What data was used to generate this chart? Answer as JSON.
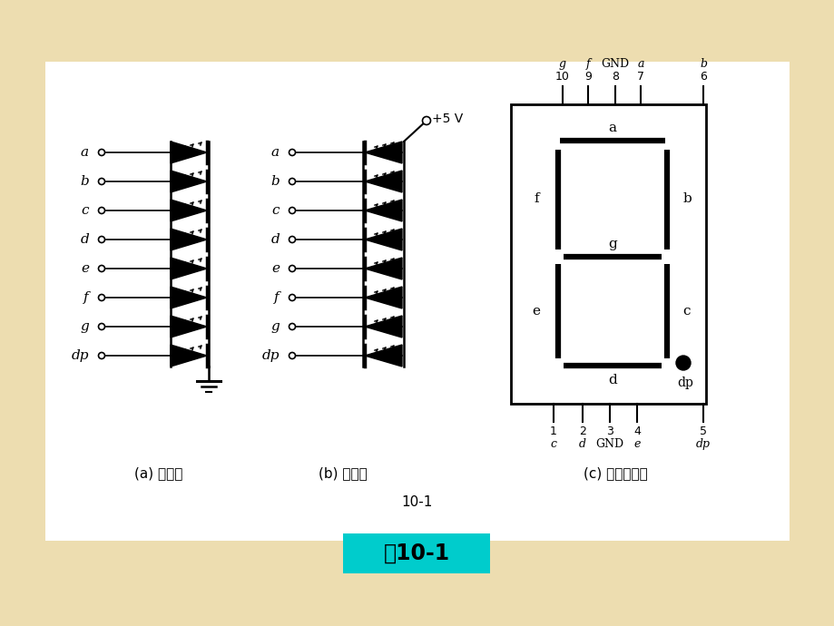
{
  "bg_color": "#edddb0",
  "panel_color": "#ffffff",
  "title_label": "图10-1",
  "title_bg": "#00cccc",
  "seg_labels": [
    "a",
    "b",
    "c",
    "d",
    "e",
    "f",
    "g",
    "dp"
  ],
  "sub_a_label": "(a) 共阴极",
  "sub_b_label": "(b) 共阳极",
  "sub_c_label": "(c) 外形及引脚",
  "fig_label": "10-1",
  "pin_top_nums": [
    "10",
    "9",
    "8",
    "7",
    "6"
  ],
  "pin_top_lbls": [
    "g",
    "f",
    "GND",
    "a",
    "b"
  ],
  "pin_bot_nums": [
    "1",
    "2",
    "3",
    "4",
    "5"
  ],
  "pin_bot_lbls": [
    "c",
    "d",
    "GND",
    "e",
    "dp"
  ]
}
